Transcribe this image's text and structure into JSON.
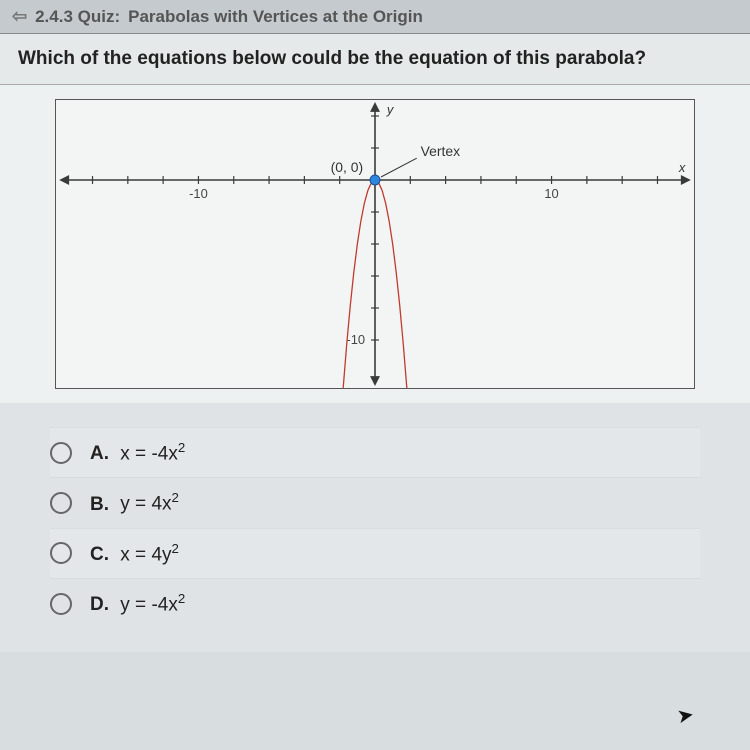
{
  "header": {
    "breadcrumb": "2.4.3 Quiz:",
    "title": "Parabolas with Vertices at the Origin"
  },
  "question": {
    "text": "Which of the equations below could be the equation of this parabola?"
  },
  "graph": {
    "type": "parabola-plot",
    "background_color": "#f3f5f5",
    "border_color": "#555555",
    "axis_color": "#3a3a3a",
    "tick_color": "#3a3a3a",
    "grid_color": "#e0e0e0",
    "curve_color": "#c0392b",
    "curve_width": 1.3,
    "vertex_color": "#2e86de",
    "vertex_radius": 5,
    "x_range": [
      -18,
      18
    ],
    "y_range": [
      -13,
      5
    ],
    "x_ticks": [
      -16,
      -14,
      -12,
      -10,
      -8,
      -6,
      -4,
      -2,
      2,
      4,
      6,
      8,
      10,
      12,
      14,
      16
    ],
    "y_ticks": [
      -10,
      -8,
      -6,
      -4,
      -2,
      2,
      4
    ],
    "x_tick_labels": {
      "-10": "-10",
      "10": "10"
    },
    "y_tick_labels": {
      "-10": "-10"
    },
    "axis_labels": {
      "y": "y",
      "x": "x"
    },
    "annotations": {
      "origin": "(0, 0)",
      "vertex": "Vertex"
    },
    "label_fontsize": 13,
    "annotation_fontsize": 14,
    "parabola_points": [
      [
        -2.0,
        -16.0
      ],
      [
        -1.8,
        -12.96
      ],
      [
        -1.6,
        -10.24
      ],
      [
        -1.4,
        -7.84
      ],
      [
        -1.2,
        -5.76
      ],
      [
        -1.0,
        -4.0
      ],
      [
        -0.8,
        -2.56
      ],
      [
        -0.6,
        -1.44
      ],
      [
        -0.4,
        -0.64
      ],
      [
        -0.2,
        -0.16
      ],
      [
        0,
        0
      ],
      [
        0.2,
        -0.16
      ],
      [
        0.4,
        -0.64
      ],
      [
        0.6,
        -1.44
      ],
      [
        0.8,
        -2.56
      ],
      [
        1.0,
        -4.0
      ],
      [
        1.2,
        -5.76
      ],
      [
        1.4,
        -7.84
      ],
      [
        1.6,
        -10.24
      ],
      [
        1.8,
        -12.96
      ],
      [
        2.0,
        -16.0
      ]
    ]
  },
  "answers": {
    "options": [
      {
        "letter": "A.",
        "lhs": "x",
        "coef": "-4",
        "var": "x",
        "exp": "2"
      },
      {
        "letter": "B.",
        "lhs": "y",
        "coef": "4",
        "var": "x",
        "exp": "2"
      },
      {
        "letter": "C.",
        "lhs": "x",
        "coef": "4",
        "var": "y",
        "exp": "2"
      },
      {
        "letter": "D.",
        "lhs": "y",
        "coef": "-4",
        "var": "x",
        "exp": "2"
      }
    ]
  }
}
